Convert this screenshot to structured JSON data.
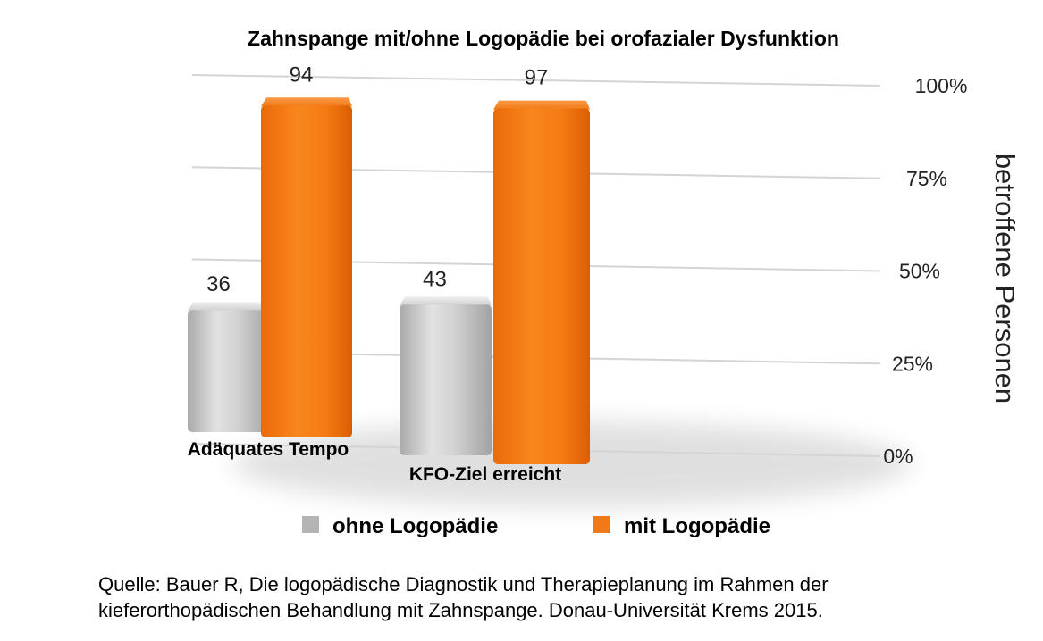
{
  "chart_data": {
    "type": "bar",
    "title": "Zahnspange mit/ohne Logopädie bei orofazialer Dysfunktion",
    "categories": [
      "Adäquates Tempo",
      "KFO-Ziel erreicht"
    ],
    "series": [
      {
        "name": "ohne Logopädie",
        "values": [
          36,
          43
        ],
        "color": "#b4b4b4"
      },
      {
        "name": "mit Logopädie",
        "values": [
          94,
          97
        ],
        "color": "#f07a18"
      }
    ],
    "yticks": [
      "0%",
      "25%",
      "50%",
      "75%",
      "100%"
    ],
    "ylim": [
      0,
      100
    ],
    "ylabel": "betroffene Personen",
    "grid": true,
    "legend_position": "bottom"
  },
  "source_note": {
    "line1": "Quelle: Bauer R, Die logopädische Diagnostik und Therapieplanung im Rahmen der",
    "line2": "kieferorthopädischen Behandlung mit Zahnspange. Donau-Universität Krems 2015."
  }
}
